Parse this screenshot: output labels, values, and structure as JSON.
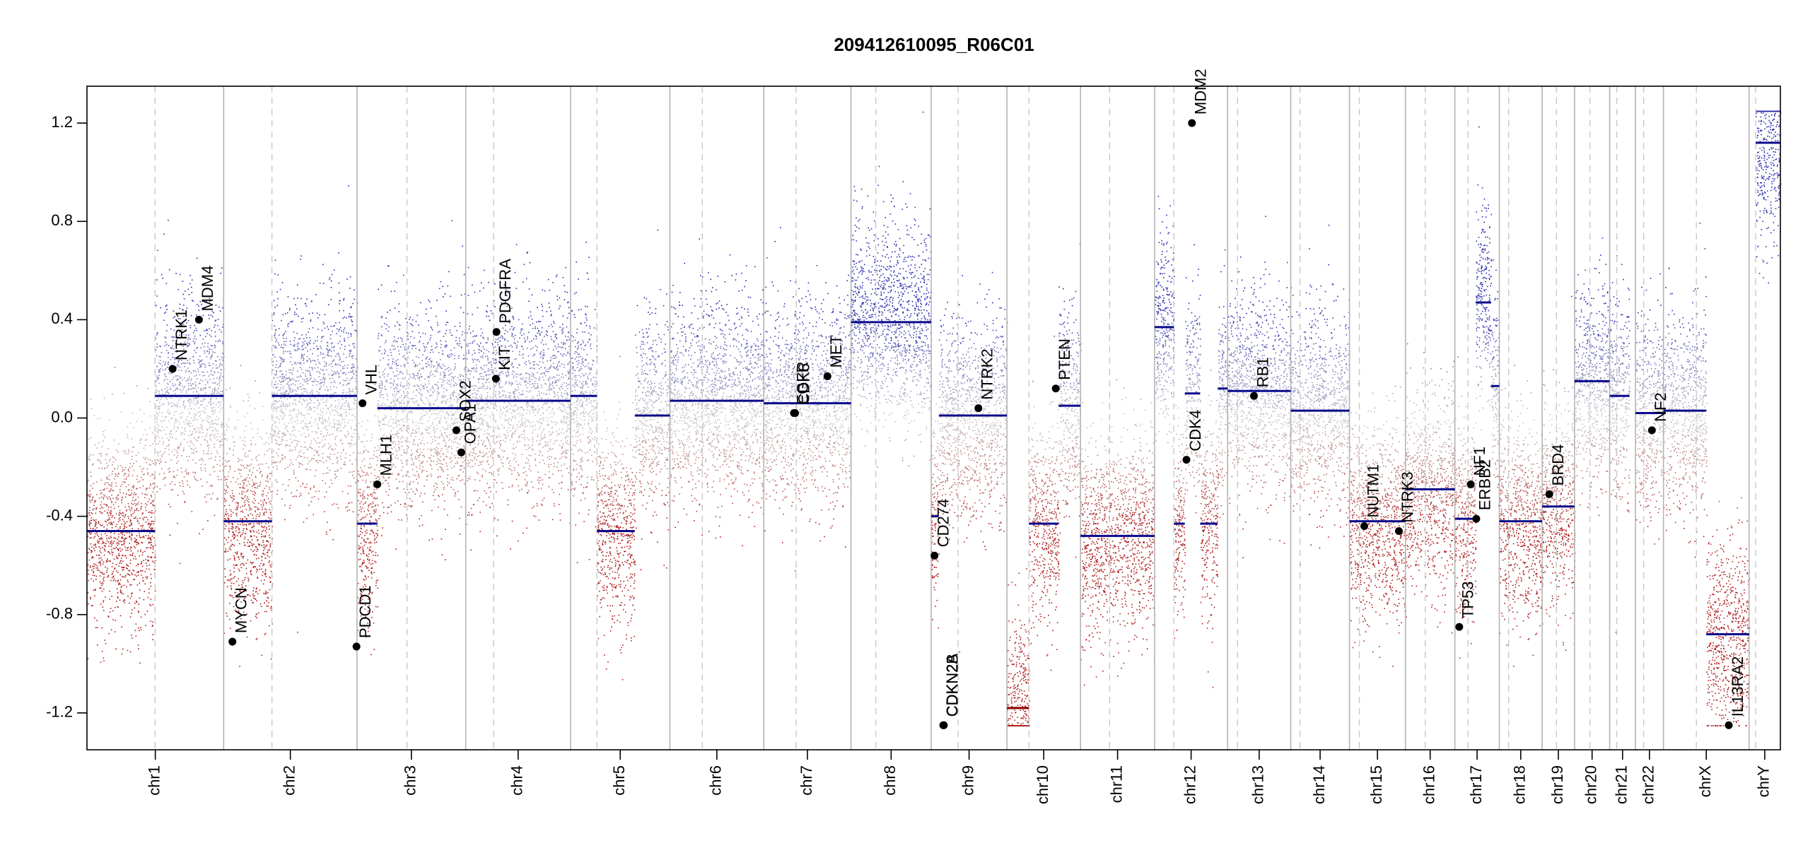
{
  "chart_data": {
    "type": "scatter",
    "title": "209412610095_R06C01",
    "xlabel": "",
    "ylabel": "",
    "ylim": [
      -1.35,
      1.35
    ],
    "y_ticks": [
      -1.2,
      -0.8,
      -0.4,
      0.0,
      0.4,
      0.8,
      1.2
    ],
    "y_tick_labels": [
      "-1.2",
      "-0.8",
      "-0.4",
      "0.0",
      "0.4",
      "0.8",
      "1.2"
    ],
    "x_unit": "Mb (cumulative genome position)",
    "grid": false,
    "colors": {
      "gain": "#2b2bb0",
      "neutral": "#c8c8c8",
      "loss": "#b01e1e",
      "segment": "#0a0a8c",
      "chrom_border": "#b4b4b4",
      "centromere": "#c8c8c8",
      "gene_point": "#000000"
    },
    "chromosomes": [
      {
        "name": "chr1",
        "start": 0,
        "end": 249,
        "cen": 124
      },
      {
        "name": "chr2",
        "start": 249,
        "end": 492,
        "cen": 337
      },
      {
        "name": "chr3",
        "start": 492,
        "end": 690,
        "cen": 583
      },
      {
        "name": "chr4",
        "start": 690,
        "end": 881,
        "cen": 741
      },
      {
        "name": "chr5",
        "start": 881,
        "end": 1062,
        "cen": 929
      },
      {
        "name": "chr6",
        "start": 1062,
        "end": 1233,
        "cen": 1121
      },
      {
        "name": "chr7",
        "start": 1233,
        "end": 1392,
        "cen": 1292
      },
      {
        "name": "chr8",
        "start": 1392,
        "end": 1538,
        "cen": 1437
      },
      {
        "name": "chr9",
        "start": 1538,
        "end": 1676,
        "cen": 1587
      },
      {
        "name": "chr10",
        "start": 1676,
        "end": 1810,
        "cen": 1716
      },
      {
        "name": "chr11",
        "start": 1810,
        "end": 1945,
        "cen": 1863
      },
      {
        "name": "chr12",
        "start": 1945,
        "end": 2078,
        "cen": 1980
      },
      {
        "name": "chr13",
        "start": 2078,
        "end": 2193,
        "cen": 2096
      },
      {
        "name": "chr14",
        "start": 2193,
        "end": 2300,
        "cen": 2210
      },
      {
        "name": "chr15",
        "start": 2300,
        "end": 2402,
        "cen": 2318
      },
      {
        "name": "chr16",
        "start": 2402,
        "end": 2492,
        "cen": 2438
      },
      {
        "name": "chr17",
        "start": 2492,
        "end": 2573,
        "cen": 2516
      },
      {
        "name": "chr18",
        "start": 2573,
        "end": 2651,
        "cen": 2590
      },
      {
        "name": "chr19",
        "start": 2651,
        "end": 2710,
        "cen": 2677
      },
      {
        "name": "chr20",
        "start": 2710,
        "end": 2774,
        "cen": 2738
      },
      {
        "name": "chr21",
        "start": 2774,
        "end": 2821,
        "cen": 2787
      },
      {
        "name": "chr22",
        "start": 2821,
        "end": 2872,
        "cen": 2836
      },
      {
        "name": "chrX",
        "start": 2872,
        "end": 3028,
        "cen": 2932
      },
      {
        "name": "chrY",
        "start": 3028,
        "end": 3085,
        "cen": 3040
      }
    ],
    "segments": [
      {
        "start": 0,
        "end": 124,
        "value": -0.46
      },
      {
        "start": 124,
        "end": 249,
        "value": 0.09
      },
      {
        "start": 249,
        "end": 337,
        "value": -0.42
      },
      {
        "start": 337,
        "end": 492,
        "value": 0.09
      },
      {
        "start": 492,
        "end": 529,
        "value": -0.43
      },
      {
        "start": 529,
        "end": 690,
        "value": 0.04
      },
      {
        "start": 690,
        "end": 881,
        "value": 0.07
      },
      {
        "start": 881,
        "end": 929,
        "value": 0.09
      },
      {
        "start": 929,
        "end": 998,
        "value": -0.46
      },
      {
        "start": 998,
        "end": 1062,
        "value": 0.01
      },
      {
        "start": 1062,
        "end": 1233,
        "value": 0.07
      },
      {
        "start": 1233,
        "end": 1392,
        "value": 0.06
      },
      {
        "start": 1392,
        "end": 1538,
        "value": 0.39
      },
      {
        "start": 1538,
        "end": 1552,
        "value": -0.4
      },
      {
        "start": 1552,
        "end": 1676,
        "value": 0.01
      },
      {
        "start": 1676,
        "end": 1716,
        "value": -1.18
      },
      {
        "start": 1716,
        "end": 1770,
        "value": -0.43
      },
      {
        "start": 1770,
        "end": 1810,
        "value": 0.05
      },
      {
        "start": 1810,
        "end": 1945,
        "value": -0.48
      },
      {
        "start": 1945,
        "end": 1980,
        "value": 0.37
      },
      {
        "start": 1980,
        "end": 2000,
        "value": -0.43
      },
      {
        "start": 2000,
        "end": 2028,
        "value": 0.1
      },
      {
        "start": 2028,
        "end": 2060,
        "value": -0.43
      },
      {
        "start": 2060,
        "end": 2078,
        "value": 0.12
      },
      {
        "start": 2078,
        "end": 2193,
        "value": 0.11
      },
      {
        "start": 2193,
        "end": 2300,
        "value": 0.03
      },
      {
        "start": 2300,
        "end": 2402,
        "value": -0.42
      },
      {
        "start": 2402,
        "end": 2492,
        "value": -0.29
      },
      {
        "start": 2492,
        "end": 2530,
        "value": -0.41
      },
      {
        "start": 2530,
        "end": 2558,
        "value": 0.47
      },
      {
        "start": 2558,
        "end": 2573,
        "value": 0.13
      },
      {
        "start": 2573,
        "end": 2651,
        "value": -0.42
      },
      {
        "start": 2651,
        "end": 2710,
        "value": -0.36
      },
      {
        "start": 2710,
        "end": 2774,
        "value": 0.15
      },
      {
        "start": 2774,
        "end": 2810,
        "value": 0.09
      },
      {
        "start": 2821,
        "end": 2872,
        "value": 0.02
      },
      {
        "start": 2872,
        "end": 2950,
        "value": 0.03
      },
      {
        "start": 2950,
        "end": 3028,
        "value": -0.88
      },
      {
        "start": 3040,
        "end": 3085,
        "value": 1.12
      }
    ],
    "genes": [
      {
        "name": "NTRK1",
        "pos": 156,
        "value": 0.2
      },
      {
        "name": "MDM4",
        "pos": 204,
        "value": 0.4
      },
      {
        "name": "MYCN",
        "pos": 265,
        "value": -0.91
      },
      {
        "name": "VHL",
        "pos": 502,
        "value": 0.06
      },
      {
        "name": "PDCD1",
        "pos": 491,
        "value": -0.93
      },
      {
        "name": "MLH1",
        "pos": 529,
        "value": -0.27
      },
      {
        "name": "SOX2",
        "pos": 673,
        "value": -0.05
      },
      {
        "name": "OPA1",
        "pos": 682,
        "value": -0.14
      },
      {
        "name": "KIT",
        "pos": 745,
        "value": 0.16
      },
      {
        "name": "PDGFRA",
        "pos": 746,
        "value": 0.35
      },
      {
        "name": "EGFR",
        "pos": 1288,
        "value": 0.02
      },
      {
        "name": "CDK6",
        "pos": 1290,
        "value": 0.02
      },
      {
        "name": "MET",
        "pos": 1349,
        "value": 0.17
      },
      {
        "name": "CD274",
        "pos": 1544,
        "value": -0.56
      },
      {
        "name": "CDKN2A",
        "pos": 1560,
        "value": -1.25
      },
      {
        "name": "CDKN2B",
        "pos": 1561,
        "value": -1.25
      },
      {
        "name": "NTRK2",
        "pos": 1624,
        "value": 0.04
      },
      {
        "name": "PTEN",
        "pos": 1765,
        "value": 0.12
      },
      {
        "name": "CDK4",
        "pos": 2003,
        "value": -0.17
      },
      {
        "name": "MDM2",
        "pos": 2013,
        "value": 1.2
      },
      {
        "name": "RB1",
        "pos": 2126,
        "value": 0.09
      },
      {
        "name": "NUTM1",
        "pos": 2327,
        "value": -0.44
      },
      {
        "name": "NTRK3",
        "pos": 2390,
        "value": -0.46
      },
      {
        "name": "TP53",
        "pos": 2500,
        "value": -0.85
      },
      {
        "name": "NF1",
        "pos": 2521,
        "value": -0.27
      },
      {
        "name": "ERBB2",
        "pos": 2531,
        "value": -0.41
      },
      {
        "name": "BRD4",
        "pos": 2664,
        "value": -0.31
      },
      {
        "name": "NF2",
        "pos": 2851,
        "value": -0.05
      },
      {
        "name": "IL13RA2",
        "pos": 2991,
        "value": -1.25
      }
    ]
  }
}
